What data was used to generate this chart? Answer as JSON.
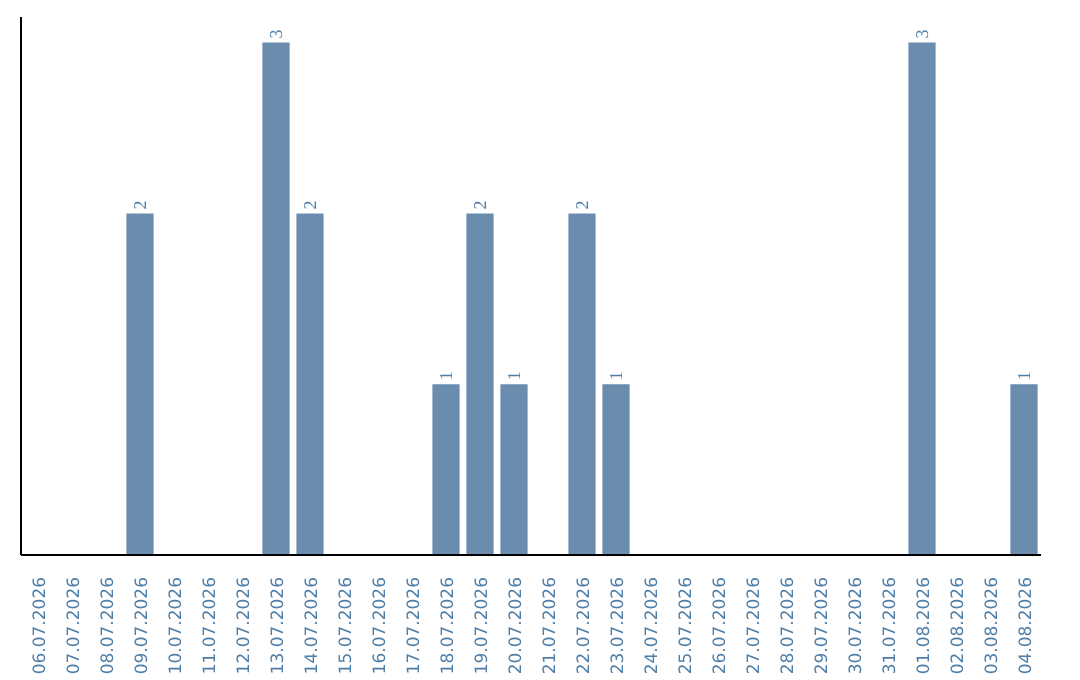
{
  "chart_data": {
    "type": "bar",
    "categories": [
      "06.07.2026",
      "07.07.2026",
      "08.07.2026",
      "09.07.2026",
      "10.07.2026",
      "11.07.2026",
      "12.07.2026",
      "13.07.2026",
      "14.07.2026",
      "15.07.2026",
      "16.07.2026",
      "17.07.2026",
      "18.07.2026",
      "19.07.2026",
      "20.07.2026",
      "21.07.2026",
      "22.07.2026",
      "23.07.2026",
      "24.07.2026",
      "25.07.2026",
      "26.07.2026",
      "27.07.2026",
      "28.07.2026",
      "29.07.2026",
      "30.07.2026",
      "31.07.2026",
      "01.08.2026",
      "02.08.2026",
      "03.08.2026",
      "04.08.2026"
    ],
    "values": [
      0,
      0,
      0,
      2,
      0,
      0,
      0,
      3,
      2,
      0,
      0,
      0,
      1,
      2,
      1,
      0,
      2,
      1,
      0,
      0,
      0,
      0,
      0,
      0,
      0,
      0,
      3,
      0,
      0,
      1
    ],
    "value_labels": [
      null,
      null,
      null,
      "2",
      null,
      null,
      null,
      "3",
      "2",
      null,
      null,
      null,
      "1",
      "2",
      "1",
      null,
      "2",
      "1",
      null,
      null,
      null,
      null,
      null,
      null,
      null,
      null,
      "3",
      null,
      null,
      "1"
    ],
    "color": "#6a8caf",
    "tick_labels": "x"
  }
}
